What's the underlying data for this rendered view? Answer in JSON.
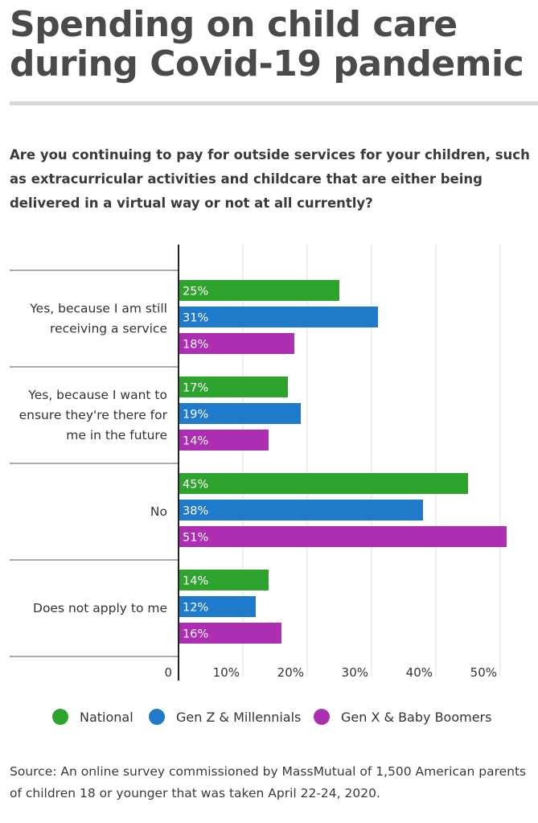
{
  "title": "Spending on child care during Covid-19 pandemic",
  "question": "Are you continuing to pay for outside services for your children, such as extracurricular activities and childcare that are either being delivered in a virtual way or not at all currently?",
  "source": "Source: An online survey commissioned by MassMutual of 1,500 American parents of children 18 or younger that was taken April 22-24, 2020.",
  "colors": {
    "national": "#2ea42e",
    "genz": "#1f7ac9",
    "genx": "#ab2fb0"
  },
  "chart_data": {
    "type": "bar",
    "orientation": "horizontal",
    "categories": [
      [
        "Yes, because I am still",
        "receiving a service"
      ],
      [
        "Yes, because I want to",
        "ensure they're there for",
        "me in the future"
      ],
      [
        "No"
      ],
      [
        "Does not apply to me"
      ]
    ],
    "series": [
      {
        "name": "National",
        "color": "#2ea42e",
        "values": [
          25,
          17,
          45,
          14
        ],
        "labels": [
          "25%",
          "17%",
          "45%",
          "14%"
        ]
      },
      {
        "name": "Gen Z & Millennials",
        "color": "#1f7ac9",
        "values": [
          31,
          19,
          38,
          12
        ],
        "labels": [
          "31%",
          "19%",
          "38%",
          "12%"
        ]
      },
      {
        "name": "Gen X & Baby Boomers",
        "color": "#ab2fb0",
        "values": [
          18,
          14,
          51,
          16
        ],
        "labels": [
          "18%",
          "14%",
          "51%",
          "16%"
        ]
      }
    ],
    "xlim": [
      0,
      55
    ],
    "xticks": [
      0,
      10,
      20,
      30,
      40,
      50
    ],
    "xtick_labels": [
      "0",
      "10%",
      "20%",
      "30%",
      "40%",
      "50%"
    ],
    "grid": true,
    "legend_position": "bottom"
  }
}
